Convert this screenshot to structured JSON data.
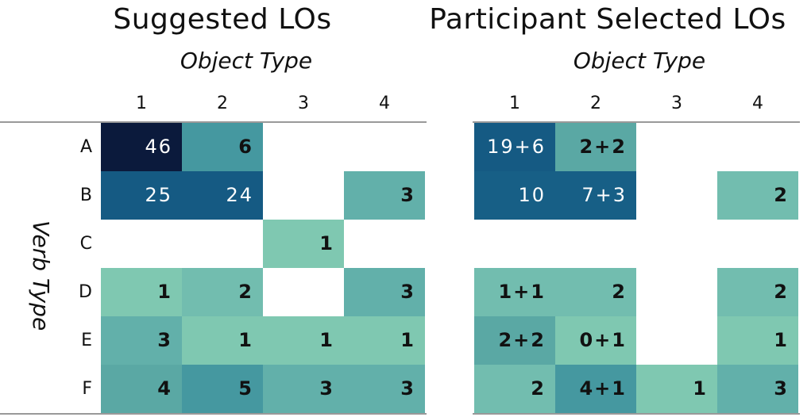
{
  "colors": {
    "grid_line": "#999999",
    "scale": [
      "#7fc8b1",
      "#72bdaf",
      "#62b0aa",
      "#5aa8a4",
      "#4598a0",
      "#175f86",
      "#155a83",
      "#0b1a3c"
    ]
  },
  "chart_data": [
    {
      "type": "heatmap",
      "title": "Suggested LOs",
      "xlabel": "Object Type",
      "ylabel": "Verb Type",
      "columns": [
        "1",
        "2",
        "3",
        "4"
      ],
      "rows": [
        "A",
        "B",
        "C",
        "D",
        "E",
        "F"
      ],
      "values": [
        [
          "46",
          "6",
          "",
          ""
        ],
        [
          "25",
          "24",
          "",
          "3"
        ],
        [
          "",
          "",
          "1",
          ""
        ],
        [
          "1",
          "2",
          "",
          "3"
        ],
        [
          "3",
          "1",
          "1",
          "1"
        ],
        [
          "4",
          "5",
          "3",
          "3"
        ]
      ],
      "totals": [
        [
          46,
          6,
          0,
          0
        ],
        [
          25,
          24,
          0,
          3
        ],
        [
          0,
          0,
          1,
          0
        ],
        [
          1,
          2,
          0,
          3
        ],
        [
          3,
          1,
          1,
          1
        ],
        [
          4,
          5,
          3,
          3
        ]
      ]
    },
    {
      "type": "heatmap",
      "title": "Participant Selected LOs",
      "xlabel": "Object Type",
      "ylabel": "",
      "columns": [
        "1",
        "2",
        "3",
        "4"
      ],
      "rows": [
        "",
        "",
        "",
        "",
        "",
        ""
      ],
      "values": [
        [
          "19+6",
          "2+2",
          "",
          ""
        ],
        [
          "10",
          "7+3",
          "",
          "2"
        ],
        [
          "",
          "",
          "",
          ""
        ],
        [
          "1+1",
          "2",
          "",
          "2"
        ],
        [
          "2+2",
          "0+1",
          "",
          "1"
        ],
        [
          "2",
          "4+1",
          "1",
          "3"
        ]
      ],
      "totals": [
        [
          25,
          4,
          0,
          0
        ],
        [
          10,
          10,
          0,
          2
        ],
        [
          0,
          0,
          0,
          0
        ],
        [
          2,
          2,
          0,
          2
        ],
        [
          4,
          1,
          0,
          1
        ],
        [
          2,
          5,
          1,
          3
        ]
      ]
    }
  ]
}
